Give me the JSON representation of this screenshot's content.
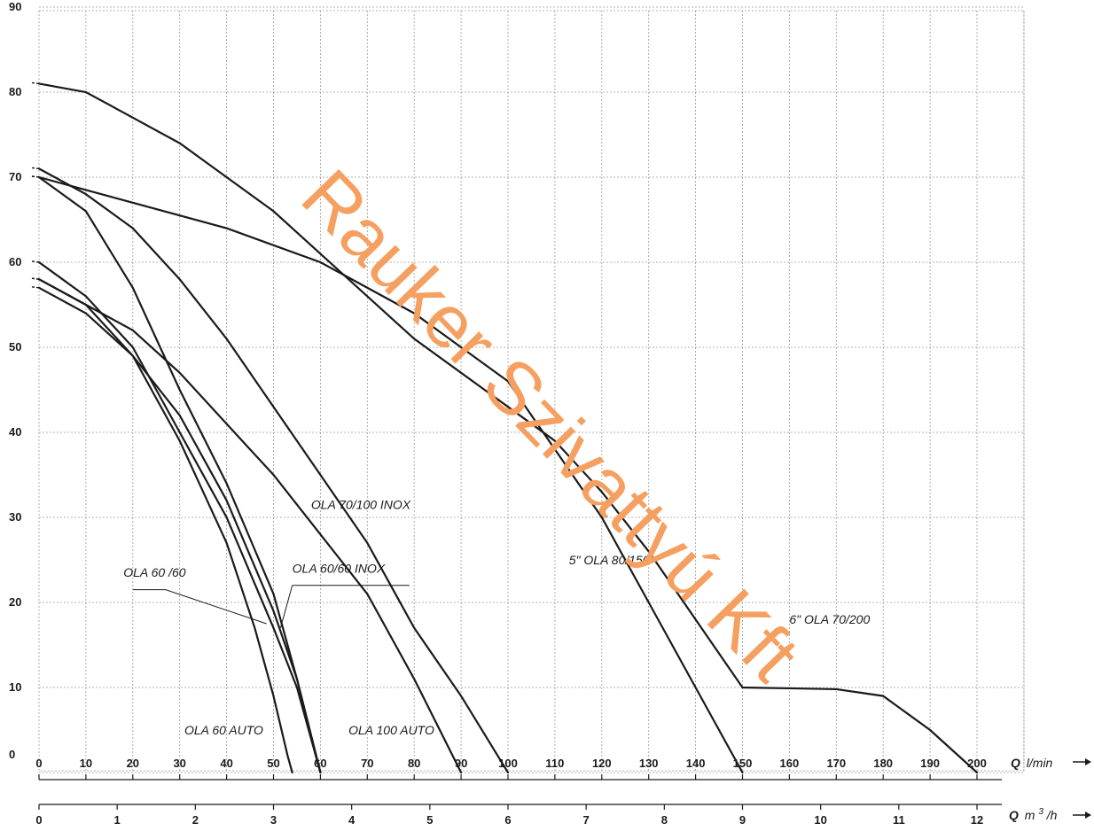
{
  "chart_data": {
    "type": "line",
    "title": "",
    "x_unit_primary": {
      "symbol": "Q",
      "unit": "l/min"
    },
    "x_unit_secondary": {
      "symbol": "Q",
      "unit": "m",
      "unit_sup": "3",
      "unit_tail": "/h"
    },
    "x_ticks_primary": [
      0,
      10,
      20,
      30,
      40,
      50,
      60,
      70,
      80,
      90,
      100,
      110,
      120,
      130,
      140,
      150,
      160,
      170,
      180,
      190,
      200
    ],
    "x_ticks_secondary": [
      0,
      1,
      2,
      3,
      4,
      5,
      6,
      7,
      8,
      9,
      10,
      11,
      12
    ],
    "y_ticks": [
      0,
      10,
      20,
      30,
      40,
      50,
      60,
      70,
      80,
      90
    ],
    "xlim": [
      0,
      210
    ],
    "ylim": [
      -2,
      92
    ],
    "grid": true,
    "watermark": "Rauker Szivattyú Kft",
    "colors": {
      "curve": "#1a1a1a",
      "grid": "#9a9a9a",
      "watermark": "#f5a060"
    },
    "series": [
      {
        "name": "OLA 60 AUTO",
        "points": [
          [
            0,
            58
          ],
          [
            10,
            55
          ],
          [
            20,
            49
          ],
          [
            30,
            39
          ],
          [
            40,
            27
          ],
          [
            46,
            17
          ],
          [
            50,
            9
          ],
          [
            53,
            2
          ],
          [
            54,
            0
          ]
        ]
      },
      {
        "name": "OLA 60 /60",
        "points": [
          [
            0,
            57
          ],
          [
            10,
            54
          ],
          [
            20,
            49
          ],
          [
            30,
            42
          ],
          [
            40,
            32
          ],
          [
            50,
            19
          ],
          [
            55,
            11
          ],
          [
            60,
            0
          ]
        ]
      },
      {
        "name": "OLA 60/60 INOX",
        "points": [
          [
            0,
            60
          ],
          [
            10,
            56
          ],
          [
            20,
            50
          ],
          [
            30,
            40
          ],
          [
            40,
            30
          ],
          [
            50,
            17
          ],
          [
            55,
            10
          ],
          [
            60,
            0
          ]
        ]
      },
      {
        "name": "",
        "points": [
          [
            0,
            70
          ],
          [
            10,
            66
          ],
          [
            20,
            57
          ],
          [
            30,
            45
          ],
          [
            40,
            34
          ],
          [
            50,
            21
          ],
          [
            55,
            11
          ],
          [
            60,
            0
          ]
        ]
      },
      {
        "name": "OLA 100 AUTO",
        "points": [
          [
            0,
            58
          ],
          [
            10,
            55
          ],
          [
            20,
            52
          ],
          [
            30,
            47
          ],
          [
            40,
            41
          ],
          [
            50,
            35
          ],
          [
            60,
            28
          ],
          [
            70,
            21
          ],
          [
            80,
            11
          ],
          [
            90,
            0
          ]
        ]
      },
      {
        "name": "OLA 70/100 INOX",
        "points": [
          [
            0,
            71
          ],
          [
            10,
            68
          ],
          [
            20,
            64
          ],
          [
            30,
            58
          ],
          [
            40,
            51
          ],
          [
            50,
            43
          ],
          [
            60,
            35
          ],
          [
            70,
            27
          ],
          [
            80,
            17
          ],
          [
            90,
            9
          ],
          [
            100,
            0
          ]
        ]
      },
      {
        "name": "5\" OLA 80/150",
        "points": [
          [
            0,
            70
          ],
          [
            20,
            67
          ],
          [
            40,
            64
          ],
          [
            60,
            60
          ],
          [
            80,
            54
          ],
          [
            100,
            46
          ],
          [
            120,
            30
          ],
          [
            130,
            20
          ],
          [
            140,
            10
          ],
          [
            150,
            0
          ]
        ]
      },
      {
        "name": "6\" OLA 70/200",
        "points": [
          [
            0,
            81
          ],
          [
            10,
            80
          ],
          [
            20,
            77
          ],
          [
            30,
            74
          ],
          [
            40,
            70
          ],
          [
            50,
            66
          ],
          [
            60,
            61
          ],
          [
            70,
            56
          ],
          [
            80,
            51
          ],
          [
            90,
            47
          ],
          [
            100,
            43
          ],
          [
            110,
            39
          ],
          [
            120,
            33
          ],
          [
            130,
            26
          ],
          [
            140,
            18
          ],
          [
            150,
            10
          ],
          [
            160,
            20
          ],
          [
            170,
            14
          ],
          [
            180,
            9
          ],
          [
            190,
            5
          ],
          [
            200,
            0
          ]
        ]
      }
    ],
    "labels": [
      {
        "text": "OLA 70/100 INOX",
        "x": 58,
        "y": 31
      },
      {
        "text": "OLA 60/60 INOX",
        "x": 54,
        "y": 23.5
      },
      {
        "text": "OLA 60 /60",
        "x": 18,
        "y": 23
      },
      {
        "text": "OLA 60 AUTO",
        "x": 31,
        "y": 4.5
      },
      {
        "text": "OLA 100 AUTO",
        "x": 66,
        "y": 4.5
      },
      {
        "text": "5\" OLA 80/150",
        "x": 113,
        "y": 24.5
      },
      {
        "text": "6\" OLA 70/200",
        "x": 160,
        "y": 17.5
      }
    ]
  }
}
